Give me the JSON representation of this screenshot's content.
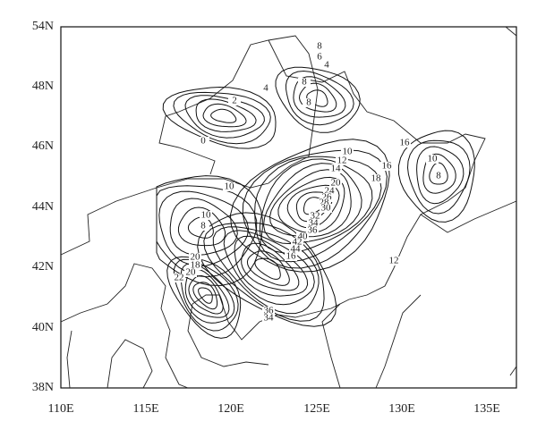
{
  "axes": {
    "y_labels": [
      "54N",
      "48N",
      "46N",
      "44N",
      "42N",
      "40N",
      "38N"
    ],
    "x_labels": [
      "110E",
      "115E",
      "120E",
      "125E",
      "130E",
      "135E"
    ]
  },
  "contour_labels": [
    "8",
    "6",
    "4",
    "4",
    "2",
    "8",
    "8",
    "0",
    "10",
    "12",
    "16",
    "14",
    "16",
    "10",
    "8",
    "18",
    "20",
    "24",
    "26",
    "28",
    "30",
    "10",
    "10",
    "8",
    "32",
    "34",
    "36",
    "40",
    "42",
    "44",
    "46",
    "16",
    "12",
    "20",
    "18",
    "20",
    "22",
    "36",
    "34"
  ]
}
